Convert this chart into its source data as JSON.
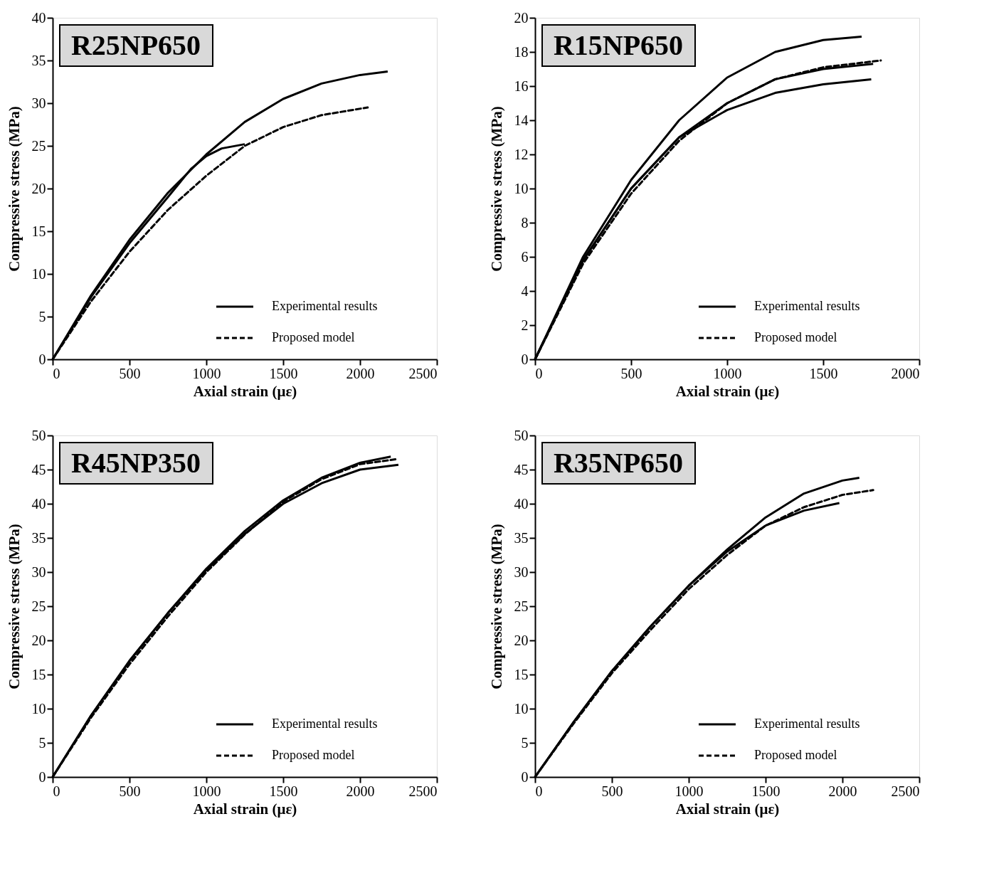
{
  "chart_data": [
    {
      "type": "line",
      "title": "R25NP650",
      "xlabel": "Axial strain (με)",
      "ylabel": "Compressive stress (MPa)",
      "xlim": [
        0,
        2500
      ],
      "xticks": [
        0,
        500,
        1000,
        1500,
        2000,
        2500
      ],
      "ylim": [
        0,
        40
      ],
      "yticks": [
        0,
        5,
        10,
        15,
        20,
        25,
        30,
        35,
        40
      ],
      "grid": false,
      "legend": "bottom right",
      "marker": "none",
      "series": [
        {
          "name": "Experimental results",
          "color": "#000000",
          "line_style": "solid",
          "x": [
            0,
            250,
            500,
            750,
            1000,
            1250,
            1500,
            1750,
            2000,
            2180
          ],
          "values": [
            0,
            7.5,
            14,
            19.5,
            24,
            27.8,
            30.5,
            32.3,
            33.3,
            33.7
          ]
        },
        {
          "color": "#000000",
          "line_style": "solid",
          "x": [
            0,
            250,
            500,
            750,
            900,
            1000,
            1100,
            1250
          ],
          "values": [
            0,
            7.3,
            13.6,
            19,
            22.3,
            23.8,
            24.7,
            25.2
          ]
        },
        {
          "name": "Proposed model",
          "color": "#000000",
          "line_style": "dashed",
          "x": [
            0,
            250,
            500,
            750,
            1000,
            1250,
            1500,
            1750,
            2050
          ],
          "values": [
            0,
            6.8,
            12.6,
            17.5,
            21.5,
            25,
            27.2,
            28.6,
            29.5
          ]
        }
      ]
    },
    {
      "type": "line",
      "title": "R15NP650",
      "xlabel": "Axial strain (με)",
      "ylabel": "Compressive stress (MPa)",
      "xlim": [
        0,
        2000
      ],
      "xticks": [
        0,
        500,
        1000,
        1500,
        2000
      ],
      "ylim": [
        0,
        20
      ],
      "yticks": [
        0,
        2,
        4,
        6,
        8,
        10,
        12,
        14,
        16,
        18,
        20
      ],
      "grid": false,
      "legend": "bottom right",
      "marker": "none",
      "series": [
        {
          "name": "Experimental results",
          "color": "#000000",
          "line_style": "solid",
          "x": [
            0,
            250,
            500,
            750,
            1000,
            1250,
            1500,
            1700
          ],
          "values": [
            0,
            6,
            10.5,
            14,
            16.5,
            18,
            18.7,
            18.9
          ]
        },
        {
          "color": "#000000",
          "line_style": "solid",
          "x": [
            0,
            250,
            500,
            750,
            1000,
            1250,
            1500,
            1760
          ],
          "values": [
            0,
            5.8,
            10,
            13,
            15,
            16.4,
            17,
            17.3
          ]
        },
        {
          "color": "#000000",
          "line_style": "solid",
          "x": [
            0,
            250,
            500,
            750,
            1000,
            1250,
            1500,
            1750
          ],
          "values": [
            0,
            5.8,
            10,
            13,
            14.6,
            15.6,
            16.1,
            16.4
          ]
        },
        {
          "name": "Proposed model",
          "color": "#000000",
          "line_style": "dashed",
          "x": [
            0,
            250,
            500,
            750,
            1000,
            1250,
            1500,
            1800
          ],
          "values": [
            0,
            5.6,
            9.7,
            12.8,
            15,
            16.4,
            17.1,
            17.5
          ]
        }
      ]
    },
    {
      "type": "line",
      "title": "R45NP350",
      "xlabel": "Axial strain (με)",
      "ylabel": "Compressive stress (MPa)",
      "xlim": [
        0,
        2500
      ],
      "xticks": [
        0,
        500,
        1000,
        1500,
        2000,
        2500
      ],
      "ylim": [
        0,
        50
      ],
      "yticks": [
        0,
        5,
        10,
        15,
        20,
        25,
        30,
        35,
        40,
        45,
        50
      ],
      "grid": false,
      "legend": "bottom right",
      "marker": "none",
      "series": [
        {
          "name": "Experimental results",
          "color": "#000000",
          "line_style": "solid",
          "x": [
            0,
            250,
            500,
            750,
            1000,
            1250,
            1500,
            1750,
            2000,
            2200
          ],
          "values": [
            0,
            9,
            17,
            24,
            30.5,
            36,
            40.5,
            43.8,
            46,
            46.9
          ]
        },
        {
          "color": "#000000",
          "line_style": "solid",
          "x": [
            0,
            250,
            500,
            750,
            1000,
            1250,
            1500,
            1750,
            2000,
            2250
          ],
          "values": [
            0,
            9,
            17,
            24,
            30.3,
            35.6,
            40,
            43,
            45,
            45.7
          ]
        },
        {
          "name": "Proposed model",
          "color": "#000000",
          "line_style": "dashed",
          "x": [
            0,
            250,
            500,
            750,
            1000,
            1250,
            1500,
            1750,
            2000,
            2230
          ],
          "values": [
            0,
            8.7,
            16.5,
            23.5,
            30,
            35.5,
            40.3,
            43.6,
            45.8,
            46.5
          ]
        }
      ]
    },
    {
      "type": "line",
      "title": "R35NP650",
      "xlabel": "Axial strain (με)",
      "ylabel": "Compressive stress (MPa)",
      "xlim": [
        0,
        2500
      ],
      "xticks": [
        0,
        500,
        1000,
        1500,
        2000,
        2500
      ],
      "ylim": [
        0,
        50
      ],
      "yticks": [
        0,
        5,
        10,
        15,
        20,
        25,
        30,
        35,
        40,
        45,
        50
      ],
      "grid": false,
      "legend": "bottom right",
      "marker": "none",
      "series": [
        {
          "name": "Experimental results",
          "color": "#000000",
          "line_style": "solid",
          "x": [
            0,
            250,
            500,
            750,
            1000,
            1250,
            1500,
            1750,
            2000,
            2110
          ],
          "values": [
            0,
            8,
            15.5,
            22,
            28,
            33.3,
            38,
            41.5,
            43.4,
            43.8
          ]
        },
        {
          "color": "#000000",
          "line_style": "solid",
          "x": [
            0,
            250,
            500,
            750,
            1000,
            1250,
            1500,
            1750,
            1980
          ],
          "values": [
            0,
            8,
            15.5,
            22,
            28,
            33,
            36.8,
            39,
            40.1
          ]
        },
        {
          "name": "Proposed model",
          "color": "#000000",
          "line_style": "dashed",
          "x": [
            0,
            250,
            500,
            750,
            1000,
            1250,
            1500,
            1750,
            2000,
            2200
          ],
          "values": [
            0,
            7.8,
            15.2,
            21.5,
            27.5,
            32.5,
            36.8,
            39.5,
            41.3,
            42
          ]
        }
      ]
    }
  ]
}
